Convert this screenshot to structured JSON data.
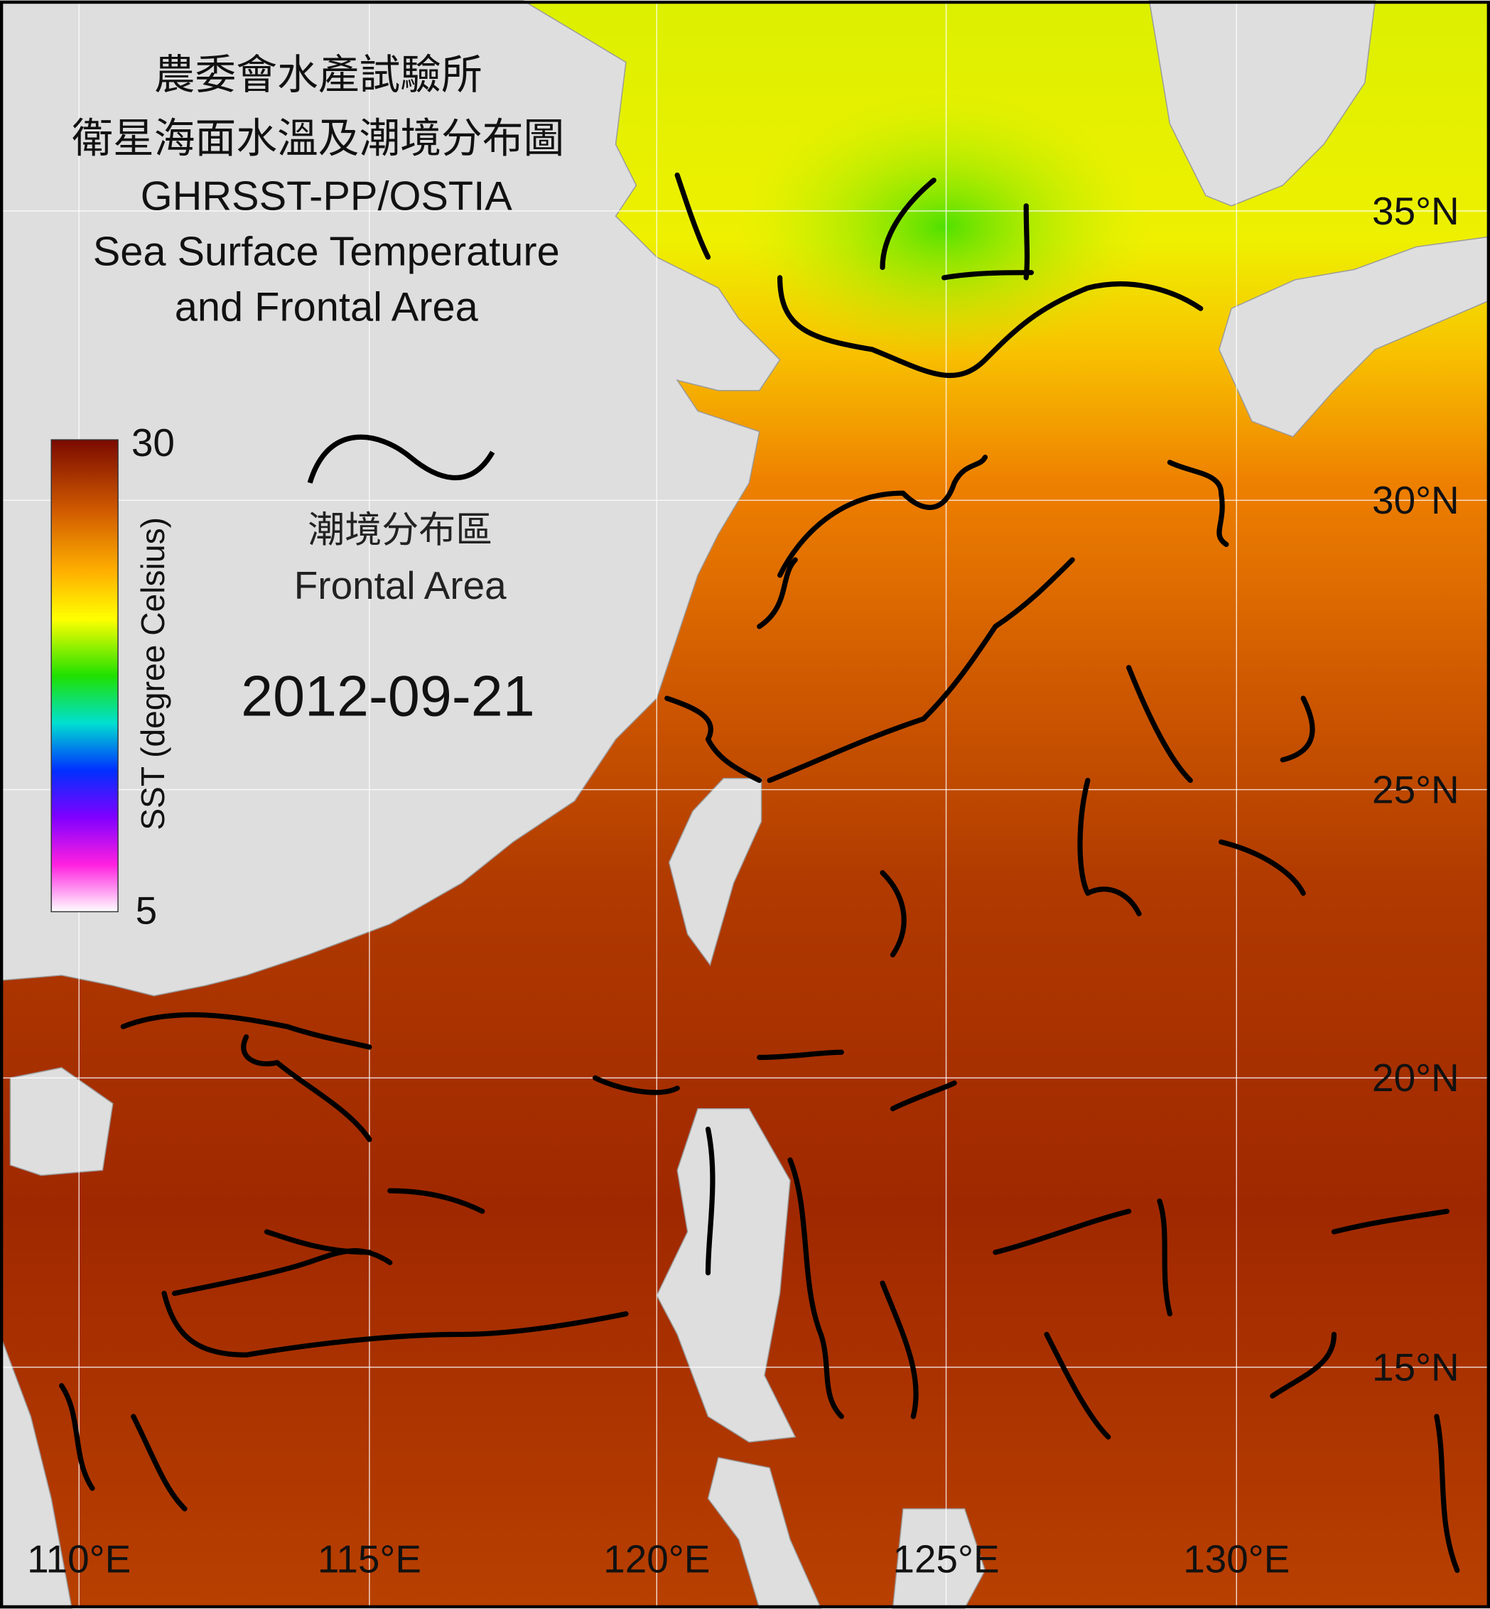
{
  "header": {
    "title_lines": [
      "農委會水產試驗所",
      "衛星海面水溫及潮境分布圖",
      "GHRSST-PP/OSTIA",
      "Sea Surface Temperature",
      "and Frontal Area"
    ]
  },
  "colorbar": {
    "label": "SST (degree Celsius)",
    "max_label": "30",
    "min_label": "5"
  },
  "legend": {
    "label_zh": "潮境分布區",
    "label_en": "Frontal Area"
  },
  "date": "2012-09-21",
  "latitude_labels": [
    "35°N",
    "30°N",
    "25°N",
    "20°N",
    "15°N"
  ],
  "longitude_labels": [
    "110°E",
    "115°E",
    "120°E",
    "125°E",
    "130°E"
  ]
}
